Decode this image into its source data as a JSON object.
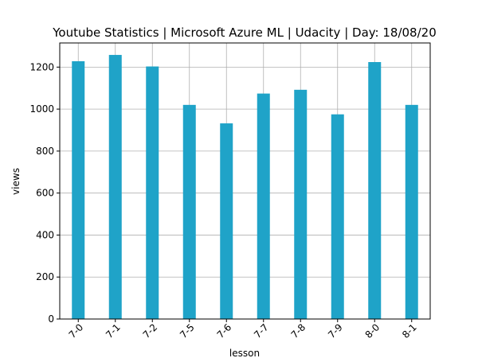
{
  "chart_data": {
    "type": "bar",
    "title": "Youtube Statistics | Microsoft Azure ML | Udacity | Day: 18/08/20",
    "xlabel": "lesson",
    "ylabel": "views",
    "categories": [
      "7-0",
      "7-1",
      "7-2",
      "7-5",
      "7-6",
      "7-7",
      "7-8",
      "7-9",
      "8-0",
      "8-1"
    ],
    "values": [
      1228,
      1258,
      1203,
      1020,
      932,
      1074,
      1092,
      975,
      1224,
      1020
    ],
    "ylim": [
      0,
      1315
    ],
    "yticks": [
      0,
      200,
      400,
      600,
      800,
      1000,
      1200
    ],
    "grid": true,
    "bar_color": "#1fa3c8"
  }
}
